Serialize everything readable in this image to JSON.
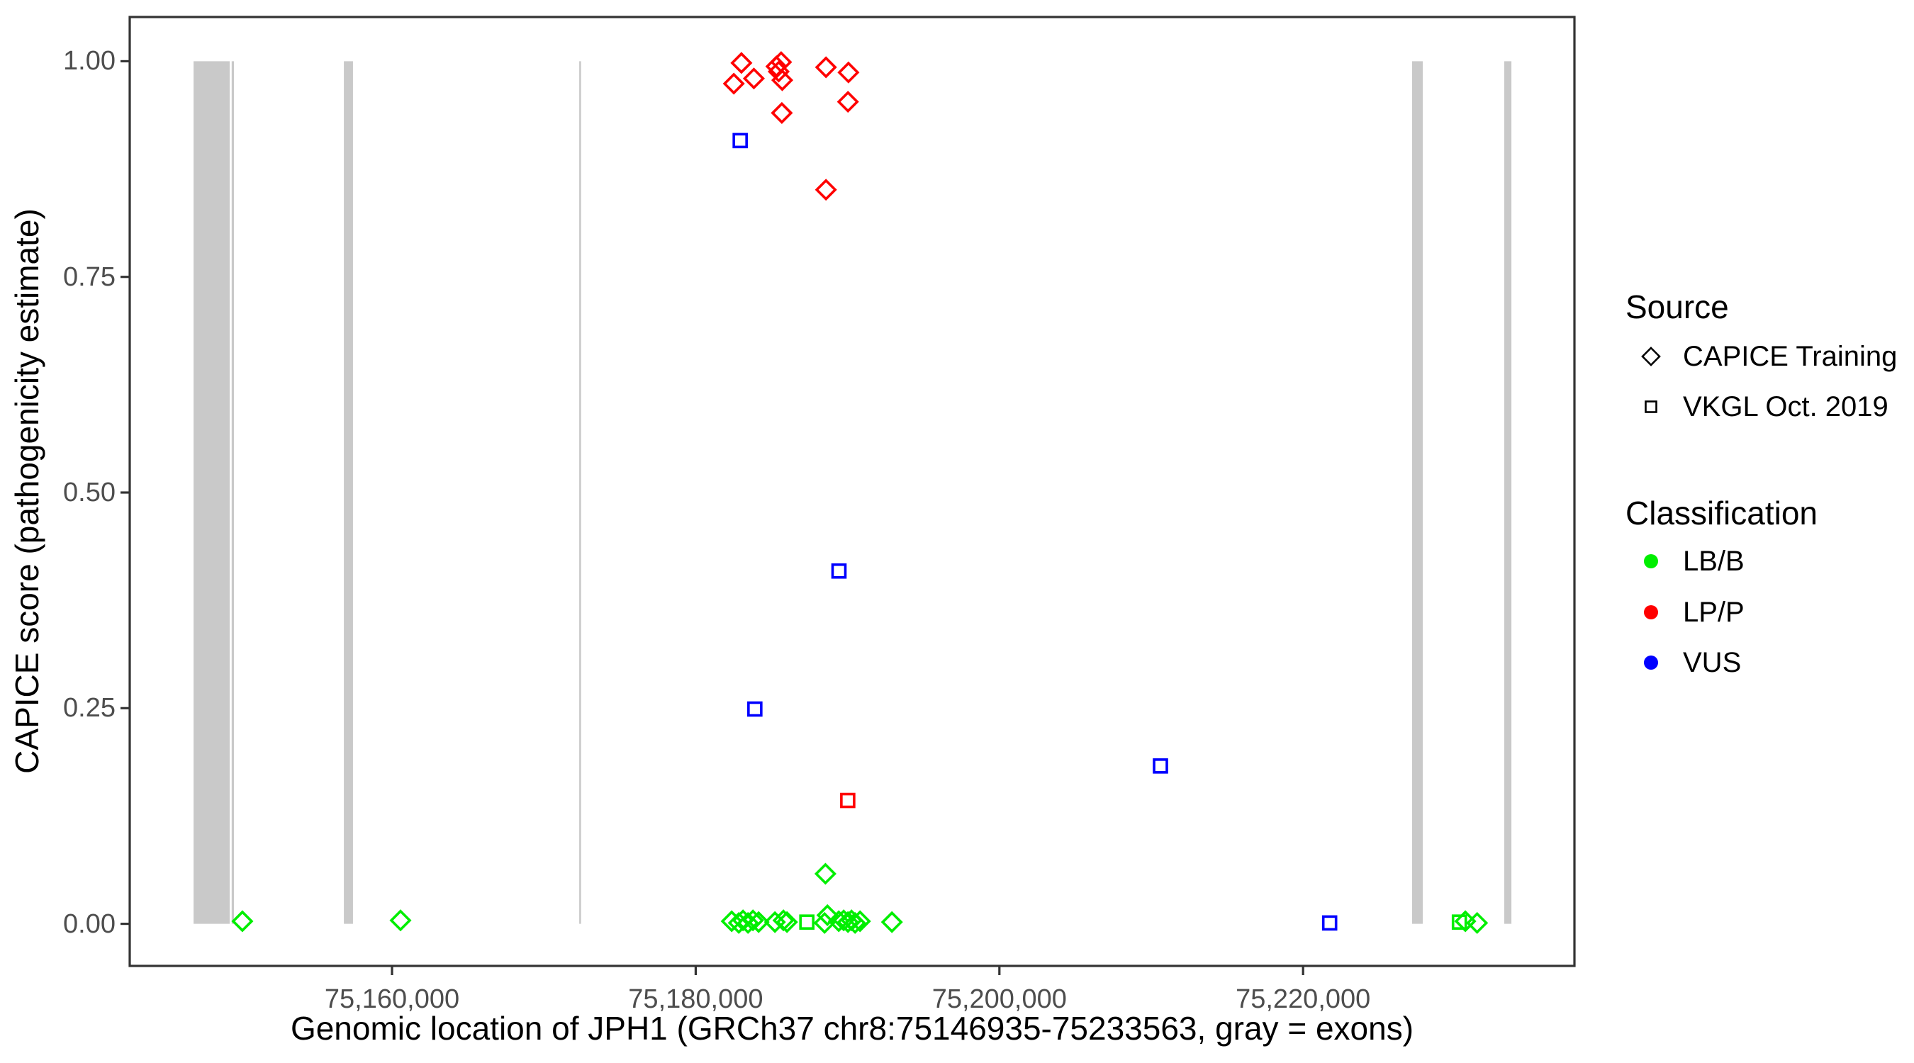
{
  "chart_data": {
    "type": "scatter",
    "xlabel": "Genomic location of JPH1 (GRCh37 chr8:75146935-75233563, gray = exons)",
    "ylabel": "CAPICE score (pathogenicity estimate)",
    "xlim": [
      75142727,
      75237871
    ],
    "ylim": [
      -0.049,
      1.051
    ],
    "grid": "off",
    "legend_position": "right",
    "x_ticks": [
      {
        "value": 75160000,
        "label": "75,160,000"
      },
      {
        "value": 75180000,
        "label": "75,180,000"
      },
      {
        "value": 75200000,
        "label": "75,200,000"
      },
      {
        "value": 75220000,
        "label": "75,220,000"
      }
    ],
    "y_ticks": [
      {
        "value": 1.0,
        "label": "1.00"
      },
      {
        "value": 0.75,
        "label": "0.75"
      },
      {
        "value": 0.5,
        "label": "0.50"
      },
      {
        "value": 0.25,
        "label": "0.25"
      },
      {
        "value": 0.0,
        "label": "0.00"
      }
    ],
    "exon_regions_bp": [
      [
        75146930,
        75149310
      ],
      [
        75149440,
        75149590
      ],
      [
        75156830,
        75157430
      ],
      [
        75172330,
        75172450
      ],
      [
        75227180,
        75227880
      ],
      [
        75233250,
        75233720
      ]
    ],
    "exon_color": "#c9c9c9",
    "series": [
      {
        "name": "CAPICE Training / LP/P",
        "source": "CAPICE Training",
        "classification": "LP/P",
        "marker": "diamond",
        "color": "#ff0000",
        "points": [
          [
            75182510,
            0.974
          ],
          [
            75183010,
            0.998
          ],
          [
            75183830,
            0.98
          ],
          [
            75185313,
            0.994
          ],
          [
            75185467,
            0.988
          ],
          [
            75185626,
            0.999
          ],
          [
            75185700,
            0.978
          ],
          [
            75185672,
            0.94
          ],
          [
            75188580,
            0.993
          ],
          [
            75188580,
            0.851
          ],
          [
            75190060,
            0.987
          ],
          [
            75190028,
            0.953
          ]
        ]
      },
      {
        "name": "CAPICE Training / LB/B",
        "source": "CAPICE Training",
        "classification": "LB/B",
        "marker": "diamond",
        "color": "#00ee00",
        "points": [
          [
            75150147,
            0.003
          ],
          [
            75160560,
            0.004
          ],
          [
            75182370,
            0.003
          ],
          [
            75182837,
            0.001
          ],
          [
            75183117,
            0.004
          ],
          [
            75183444,
            0.001
          ],
          [
            75183771,
            0.004
          ],
          [
            75184144,
            0.002
          ],
          [
            75185218,
            0.002
          ],
          [
            75185779,
            0.004
          ],
          [
            75186012,
            0.002
          ],
          [
            75188487,
            0.001
          ],
          [
            75188674,
            0.01
          ],
          [
            75188545,
            0.058
          ],
          [
            75189421,
            0.003
          ],
          [
            75189748,
            0.004
          ],
          [
            75190028,
            0.002
          ],
          [
            75190262,
            0.004
          ],
          [
            75190495,
            0.001
          ],
          [
            75190822,
            0.003
          ],
          [
            75192923,
            0.002
          ],
          [
            75230687,
            0.003
          ],
          [
            75231462,
            0.001
          ]
        ]
      },
      {
        "name": "VKGL Oct. 2019 / VUS",
        "source": "VKGL Oct. 2019",
        "classification": "VUS",
        "marker": "square",
        "color": "#0000ff",
        "points": [
          [
            75182930,
            0.908
          ],
          [
            75189435,
            0.409
          ],
          [
            75183895,
            0.249
          ],
          [
            75210608,
            0.183
          ],
          [
            75221750,
            0.001
          ]
        ]
      },
      {
        "name": "VKGL Oct. 2019 / LP/P",
        "source": "VKGL Oct. 2019",
        "classification": "LP/P",
        "marker": "square",
        "color": "#ff0000",
        "points": [
          [
            75190013,
            0.143
          ]
        ]
      },
      {
        "name": "VKGL Oct. 2019 / LB/B",
        "source": "VKGL Oct. 2019",
        "classification": "LB/B",
        "marker": "square",
        "color": "#00ee00",
        "points": [
          [
            75187320,
            0.002
          ],
          [
            75230295,
            0.002
          ]
        ]
      }
    ]
  },
  "legend": {
    "source": {
      "title": "Source",
      "items": [
        {
          "label": "CAPICE Training",
          "marker": "diamond"
        },
        {
          "label": "VKGL Oct. 2019",
          "marker": "square"
        }
      ]
    },
    "classification": {
      "title": "Classification",
      "items": [
        {
          "label": "LB/B",
          "color": "#00ee00"
        },
        {
          "label": "LP/P",
          "color": "#ff0000"
        },
        {
          "label": "VUS",
          "color": "#0000ff"
        }
      ]
    }
  }
}
